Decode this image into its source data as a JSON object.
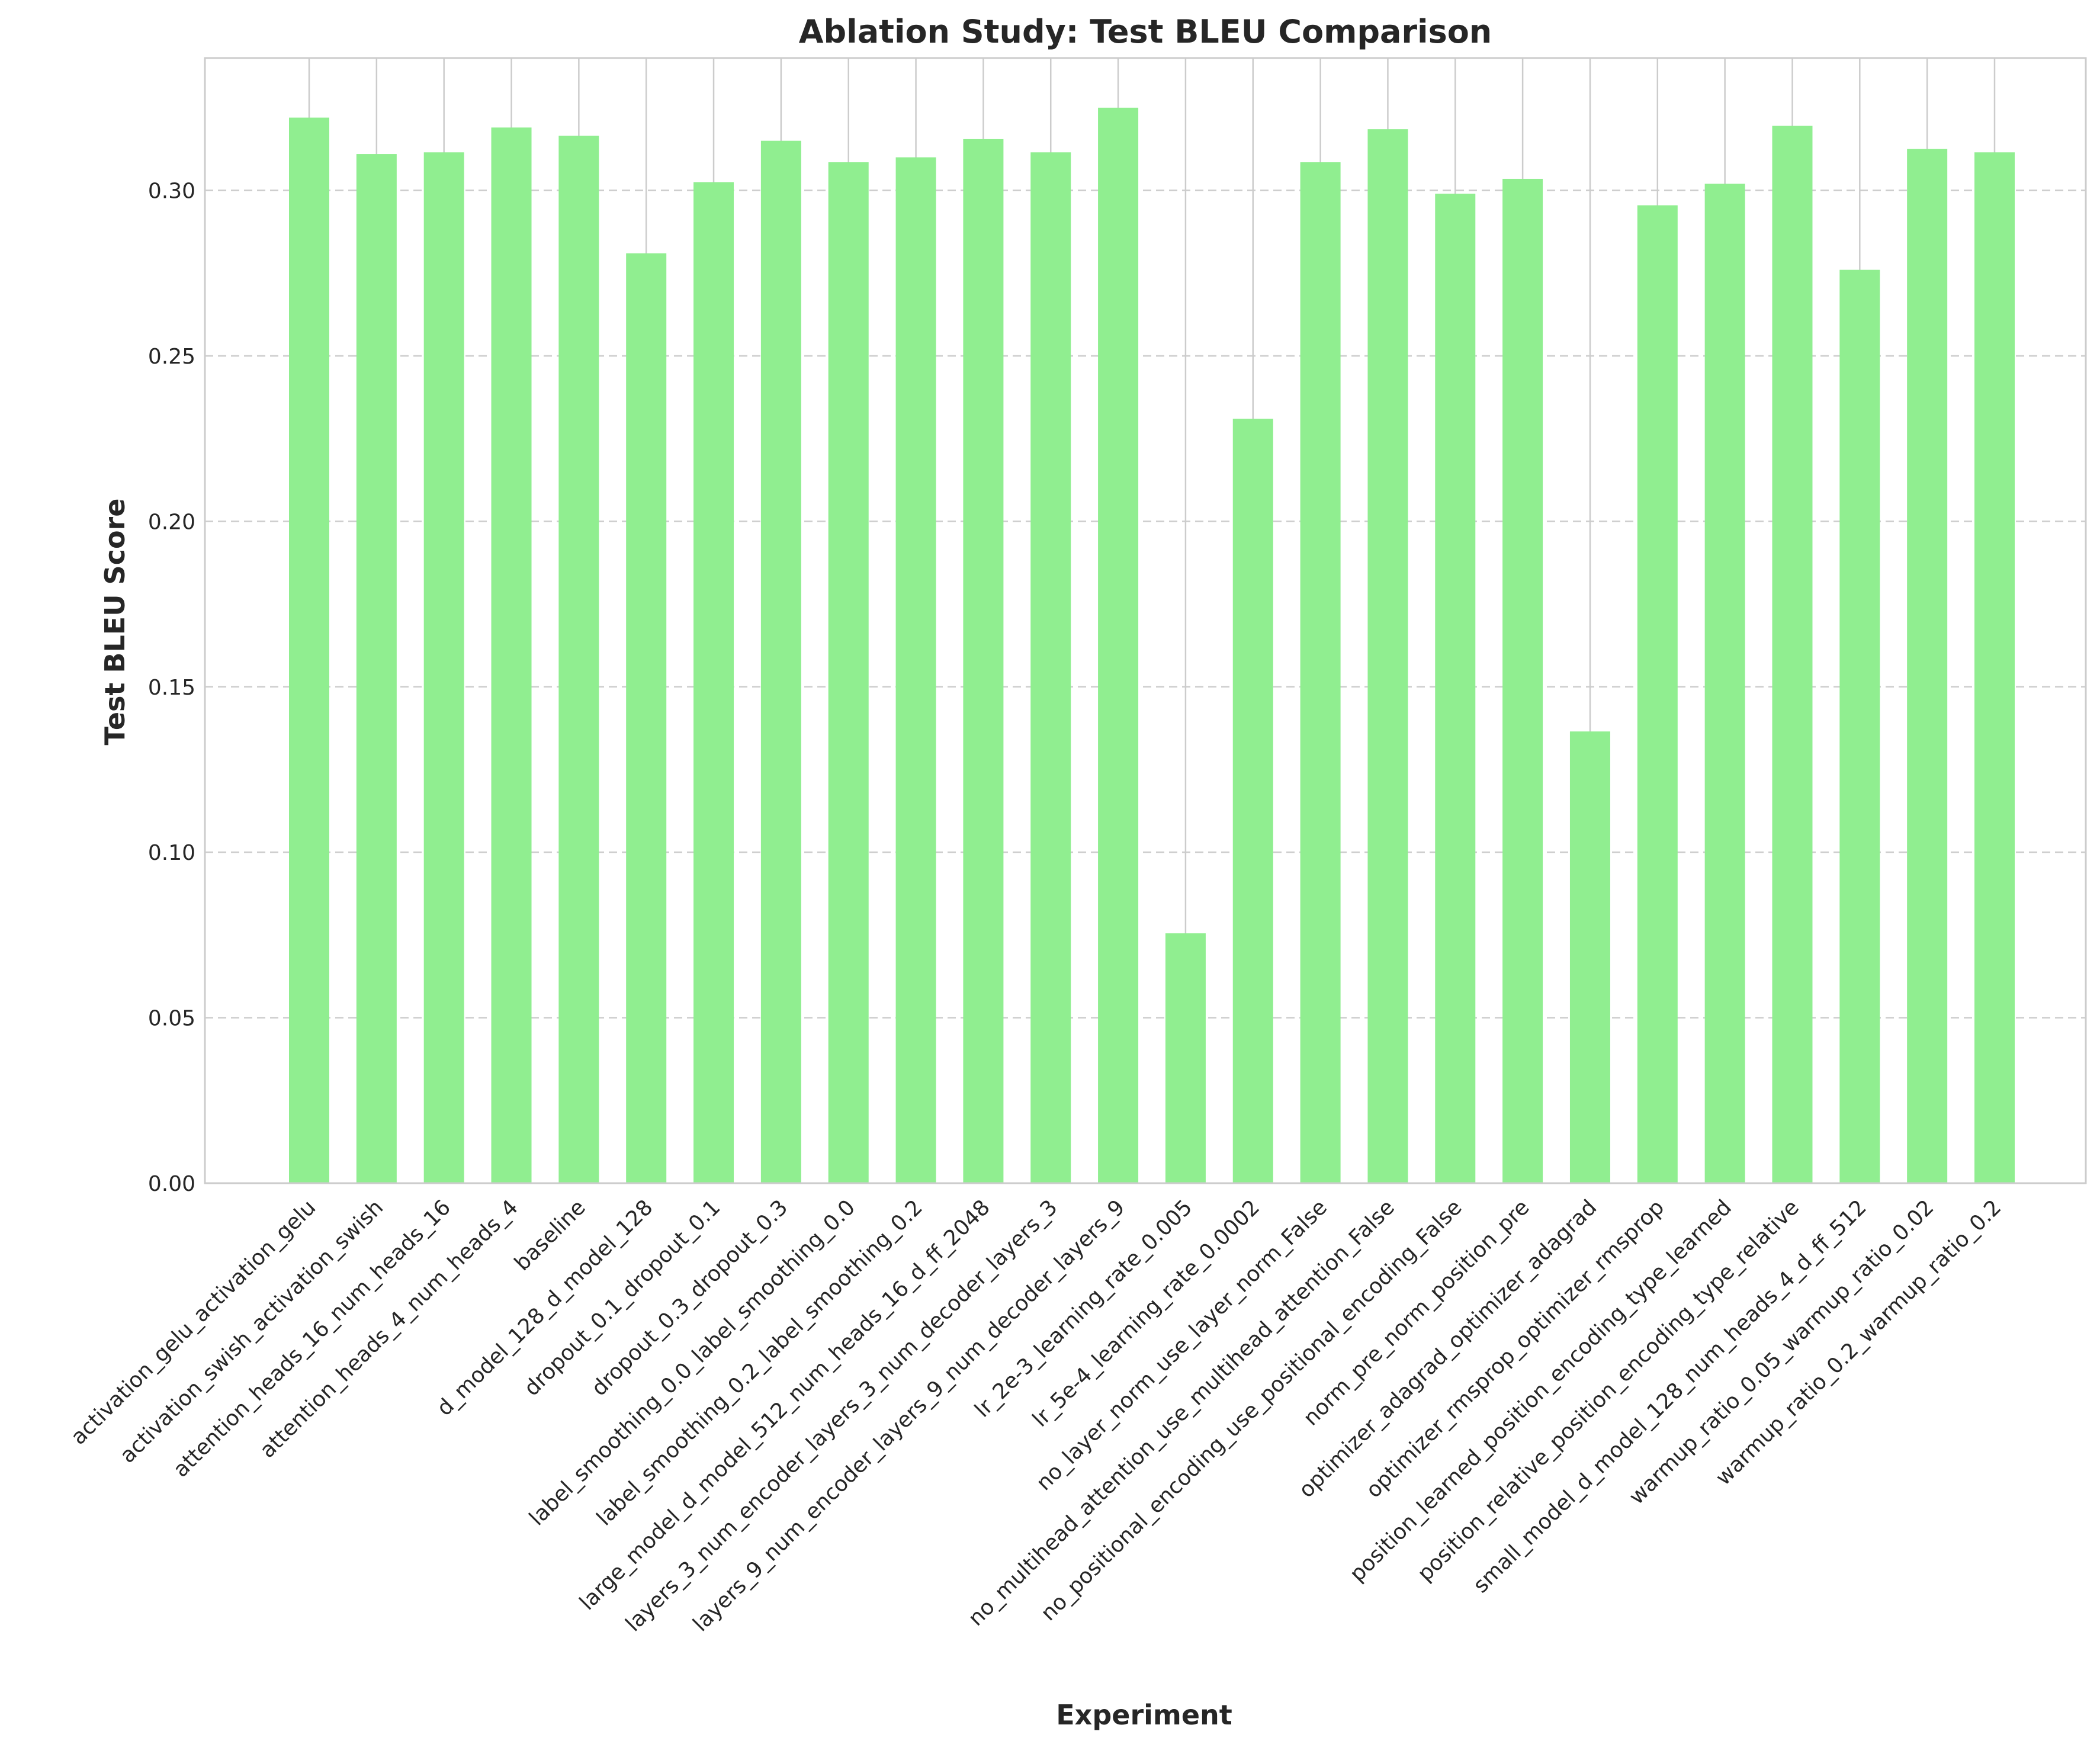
{
  "chart_data": {
    "type": "bar",
    "title": "Ablation Study: Test BLEU Comparison",
    "xlabel": "Experiment",
    "ylabel": "Test BLEU Score",
    "ylim": [
      0,
      0.34
    ],
    "yticks": [
      "0.00",
      "0.05",
      "0.10",
      "0.15",
      "0.20",
      "0.25",
      "0.30"
    ],
    "ytick_values": [
      0,
      0.05,
      0.1,
      0.15,
      0.2,
      0.25,
      0.3
    ],
    "grid": true,
    "bar_color": "#90ee90",
    "categories": [
      "activation_gelu_activation_gelu",
      "activation_swish_activation_swish",
      "attention_heads_16_num_heads_16",
      "attention_heads_4_num_heads_4",
      "baseline",
      "d_model_128_d_model_128",
      "dropout_0.1_dropout_0.1",
      "dropout_0.3_dropout_0.3",
      "label_smoothing_0.0_label_smoothing_0.0",
      "label_smoothing_0.2_label_smoothing_0.2",
      "large_model_d_model_512_num_heads_16_d_ff_2048",
      "layers_3_num_encoder_layers_3_num_decoder_layers_3",
      "layers_9_num_encoder_layers_9_num_decoder_layers_9",
      "lr_2e-3_learning_rate_0.005",
      "lr_5e-4_learning_rate_0.0002",
      "no_layer_norm_use_layer_norm_False",
      "no_multihead_attention_use_multihead_attention_False",
      "no_positional_encoding_use_positional_encoding_False",
      "norm_pre_norm_position_pre",
      "optimizer_adagrad_optimizer_adagrad",
      "optimizer_rmsprop_optimizer_rmsprop",
      "position_learned_position_encoding_type_learned",
      "position_relative_position_encoding_type_relative",
      "small_model_d_model_128_num_heads_4_d_ff_512",
      "warmup_ratio_0.05_warmup_ratio_0.02",
      "warmup_ratio_0.2_warmup_ratio_0.2"
    ],
    "values": [
      0.322,
      0.311,
      0.3115,
      0.319,
      0.3165,
      0.281,
      0.3025,
      0.315,
      0.3085,
      0.31,
      0.3155,
      0.3115,
      0.325,
      0.0755,
      0.231,
      0.3085,
      0.3185,
      0.299,
      0.3035,
      0.1365,
      0.2955,
      0.302,
      0.3195,
      0.276,
      0.3125,
      0.3115
    ]
  }
}
